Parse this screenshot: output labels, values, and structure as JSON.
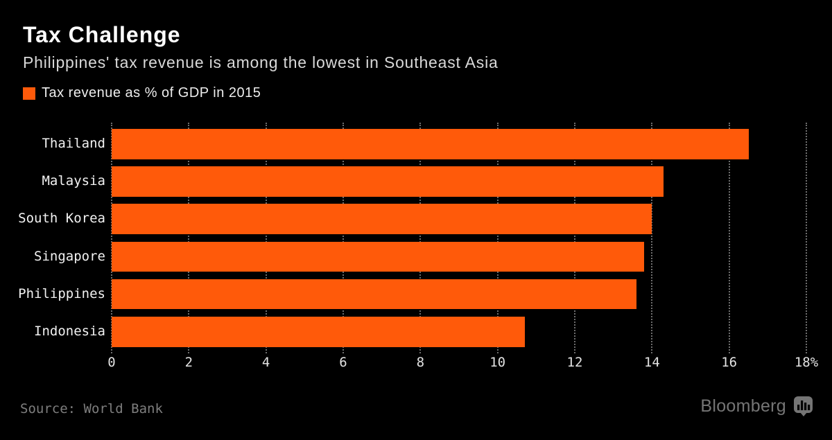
{
  "header": {
    "title": "Tax Challenge",
    "subtitle": "Philippines' tax revenue is among the lowest in Southeast Asia"
  },
  "legend": {
    "label": "Tax revenue as % of GDP in 2015",
    "swatch_color": "#ff5a0a"
  },
  "chart_data": {
    "type": "bar",
    "orientation": "horizontal",
    "title": "Tax Challenge",
    "subtitle": "Philippines' tax revenue is among the lowest in Southeast Asia",
    "series_label": "Tax revenue as % of GDP in 2015",
    "categories": [
      "Thailand",
      "Malaysia",
      "South Korea",
      "Singapore",
      "Philippines",
      "Indonesia"
    ],
    "values": [
      16.5,
      14.3,
      14.0,
      13.8,
      13.6,
      10.7
    ],
    "xlim": [
      0,
      18
    ],
    "xticks": [
      {
        "value": 0,
        "label": "0"
      },
      {
        "value": 2,
        "label": "2"
      },
      {
        "value": 4,
        "label": "4"
      },
      {
        "value": 6,
        "label": "6"
      },
      {
        "value": 8,
        "label": "8"
      },
      {
        "value": 10,
        "label": "10"
      },
      {
        "value": 12,
        "label": "12"
      },
      {
        "value": 14,
        "label": "14"
      },
      {
        "value": 16,
        "label": "16"
      },
      {
        "value": 18,
        "label": "18%"
      }
    ],
    "bar_color": "#ff5a0a",
    "grid": "vertical-dotted",
    "background": "#000000"
  },
  "footer": {
    "source": "Source: World Bank",
    "brand": "Bloomberg",
    "brand_icon": "bar-chart-bubble-icon"
  }
}
